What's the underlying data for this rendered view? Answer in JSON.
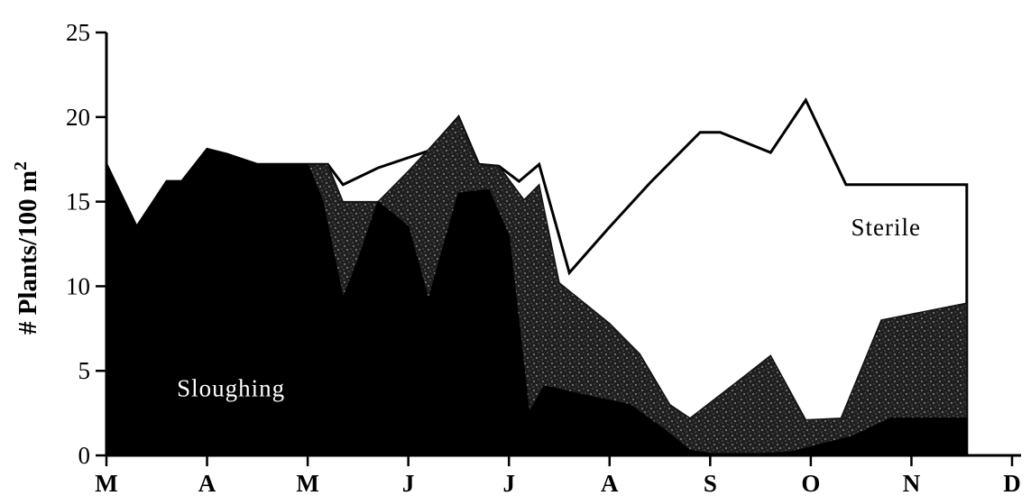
{
  "chart_data": {
    "type": "area",
    "ylabel": "# Plants/100 m",
    "ylabel_superscript": "2",
    "ylim": [
      0,
      25
    ],
    "yticks": [
      0,
      5,
      10,
      15,
      20,
      25
    ],
    "xlim": [
      0,
      11
    ],
    "month_ticks": [
      {
        "x": 0,
        "label": "M"
      },
      {
        "x": 1,
        "label": "A"
      },
      {
        "x": 2,
        "label": "M"
      },
      {
        "x": 3,
        "label": "J"
      },
      {
        "x": 4,
        "label": "J"
      },
      {
        "x": 5,
        "label": "A"
      },
      {
        "x": 6,
        "label": "S"
      },
      {
        "x": 7,
        "label": "O"
      },
      {
        "x": 8,
        "label": "N"
      },
      {
        "x": 9,
        "label": "D"
      }
    ],
    "annotations": [
      {
        "text": "Sloughing",
        "x": 0.7,
        "y": 3.5,
        "color": "#ffffff"
      },
      {
        "text": "Sterile",
        "x": 7.4,
        "y": 13.0,
        "color": "#000000"
      }
    ],
    "series": [
      {
        "name": "Sterile",
        "fill": "none",
        "points": [
          [
            0,
            17.2
          ],
          [
            0.3,
            13.5
          ],
          [
            0.6,
            16.2
          ],
          [
            0.75,
            16.2
          ],
          [
            1.0,
            18.1
          ],
          [
            1.2,
            17.8
          ],
          [
            1.5,
            17.2
          ],
          [
            2.0,
            17.2
          ],
          [
            2.2,
            17.2
          ],
          [
            2.35,
            16.0
          ],
          [
            2.7,
            17.0
          ],
          [
            3.2,
            18.0
          ],
          [
            3.5,
            20.0
          ],
          [
            3.7,
            17.2
          ],
          [
            3.9,
            17.1
          ],
          [
            4.1,
            16.2
          ],
          [
            4.3,
            17.2
          ],
          [
            4.6,
            10.8
          ],
          [
            5.0,
            13.5
          ],
          [
            5.4,
            16.1
          ],
          [
            5.9,
            19.1
          ],
          [
            6.1,
            19.1
          ],
          [
            6.6,
            17.9
          ],
          [
            6.95,
            21.0
          ],
          [
            7.35,
            16.0
          ],
          [
            7.9,
            16.0
          ],
          [
            8.55,
            16.0
          ],
          [
            8.55,
            0
          ]
        ]
      },
      {
        "name": "Stippled",
        "fill": "#333333",
        "points": [
          [
            0,
            17.2
          ],
          [
            0.3,
            13.5
          ],
          [
            0.6,
            16.2
          ],
          [
            0.75,
            16.2
          ],
          [
            1.0,
            18.1
          ],
          [
            1.2,
            17.8
          ],
          [
            1.5,
            17.2
          ],
          [
            2.0,
            17.2
          ],
          [
            2.2,
            17.2
          ],
          [
            2.35,
            15.0
          ],
          [
            2.6,
            15.0
          ],
          [
            2.7,
            15.0
          ],
          [
            3.0,
            16.8
          ],
          [
            3.5,
            20.0
          ],
          [
            3.7,
            17.2
          ],
          [
            3.9,
            17.1
          ],
          [
            4.15,
            15.1
          ],
          [
            4.3,
            16.0
          ],
          [
            4.5,
            10.2
          ],
          [
            5.0,
            7.8
          ],
          [
            5.3,
            6.0
          ],
          [
            5.6,
            3.0
          ],
          [
            5.8,
            2.2
          ],
          [
            6.3,
            4.5
          ],
          [
            6.6,
            5.9
          ],
          [
            6.95,
            2.1
          ],
          [
            7.3,
            2.2
          ],
          [
            7.7,
            8.0
          ],
          [
            8.55,
            9.0
          ],
          [
            8.55,
            0
          ]
        ]
      },
      {
        "name": "Sloughing",
        "fill": "#000000",
        "points": [
          [
            0,
            17.2
          ],
          [
            0.3,
            13.5
          ],
          [
            0.6,
            16.2
          ],
          [
            0.75,
            16.2
          ],
          [
            1.0,
            18.1
          ],
          [
            1.2,
            17.8
          ],
          [
            1.5,
            17.2
          ],
          [
            2.0,
            17.2
          ],
          [
            2.15,
            15.0
          ],
          [
            2.35,
            9.3
          ],
          [
            2.5,
            11.5
          ],
          [
            2.7,
            15.0
          ],
          [
            3.0,
            13.5
          ],
          [
            3.2,
            9.2
          ],
          [
            3.5,
            15.5
          ],
          [
            3.8,
            15.7
          ],
          [
            4.0,
            13.0
          ],
          [
            4.2,
            2.5
          ],
          [
            4.35,
            4.1
          ],
          [
            4.8,
            3.5
          ],
          [
            5.2,
            3.0
          ],
          [
            5.55,
            1.5
          ],
          [
            5.8,
            0.3
          ],
          [
            6.0,
            0.1
          ],
          [
            6.5,
            0.1
          ],
          [
            6.8,
            0.2
          ],
          [
            7.0,
            0.5
          ],
          [
            7.4,
            1.1
          ],
          [
            7.8,
            2.2
          ],
          [
            8.55,
            2.2
          ],
          [
            8.55,
            0
          ]
        ]
      }
    ]
  }
}
